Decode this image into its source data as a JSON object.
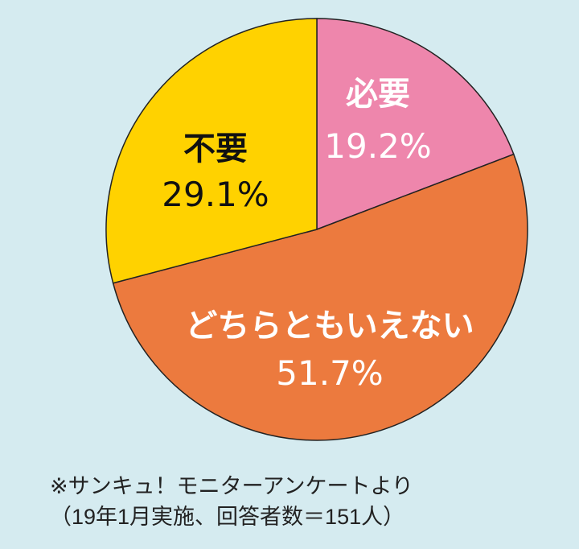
{
  "chart_data": {
    "type": "pie",
    "start": "top",
    "direction": "clockwise",
    "slices": [
      {
        "label": "必要",
        "value": 19.2,
        "value_label": "19.2%",
        "color": "#ee86ac",
        "text_color": "#ffffff"
      },
      {
        "label": "どちらともいえない",
        "value": 51.7,
        "value_label": "51.7%",
        "color": "#ec7a3e",
        "text_color": "#ffffff"
      },
      {
        "label": "不要",
        "value": 29.1,
        "value_label": "29.1%",
        "color": "#ffd200",
        "text_color": "#111111"
      }
    ],
    "outline_color": "#222222"
  },
  "background_color": "#d5ebf0",
  "notes": {
    "source": "※サンキュ！モニターアンケートより",
    "detail": "（19年1月実施、回答者数＝151人）"
  }
}
